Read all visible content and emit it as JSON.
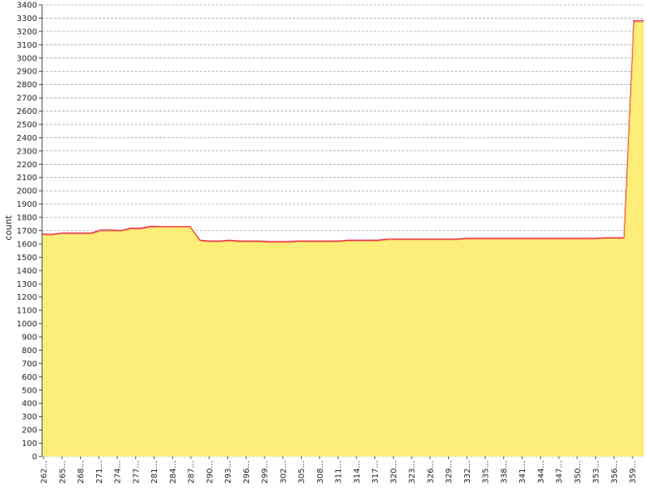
{
  "chart_data": {
    "type": "area",
    "ylabel": "count",
    "xlabel": "",
    "ylim": [
      0,
      3400
    ],
    "y_ticks": [
      0,
      100,
      200,
      300,
      400,
      500,
      600,
      700,
      800,
      900,
      1000,
      1100,
      1200,
      1300,
      1400,
      1500,
      1600,
      1700,
      1800,
      1900,
      2000,
      2100,
      2200,
      2300,
      2400,
      2500,
      2600,
      2700,
      2800,
      2900,
      3000,
      3100,
      3200,
      3300,
      3400
    ],
    "x_tick_labels": [
      "262...",
      "265...",
      "268...",
      "271...",
      "274...",
      "277...",
      "281...",
      "284...",
      "287...",
      "290...",
      "293...",
      "296...",
      "299...",
      "302...",
      "305...",
      "308...",
      "311...",
      "314...",
      "317...",
      "320...",
      "323...",
      "326...",
      "329...",
      "332...",
      "335...",
      "338...",
      "341...",
      "344...",
      "347...",
      "350...",
      "353...",
      "356...",
      "359..."
    ],
    "grid": true,
    "fill_color": "#fdee7a",
    "upper_line_color": "#e8304a",
    "series": [
      {
        "values_low": [
          1670,
          1665,
          1675,
          1675,
          1675,
          1675,
          1695,
          1695,
          1695,
          1710,
          1710,
          1725,
          1725,
          1725,
          1725,
          1725,
          1620,
          1615,
          1615,
          1620,
          1615,
          1615,
          1615,
          1610,
          1610,
          1610,
          1615,
          1615,
          1615,
          1615,
          1615,
          1620,
          1620,
          1620,
          1620,
          1630,
          1630,
          1630,
          1630,
          1630,
          1630,
          1630,
          1630,
          1635,
          1635,
          1635,
          1635,
          1635,
          1635,
          1635,
          1635,
          1635,
          1635,
          1635,
          1635,
          1635,
          1635,
          1640,
          1640,
          1640,
          3270,
          3270
        ],
        "values_high": [
          1675,
          1672,
          1682,
          1682,
          1682,
          1682,
          1705,
          1705,
          1700,
          1718,
          1718,
          1732,
          1730,
          1730,
          1730,
          1730,
          1628,
          1622,
          1622,
          1628,
          1622,
          1622,
          1622,
          1618,
          1618,
          1618,
          1622,
          1622,
          1622,
          1622,
          1622,
          1628,
          1628,
          1628,
          1628,
          1636,
          1636,
          1636,
          1636,
          1636,
          1636,
          1636,
          1636,
          1642,
          1642,
          1642,
          1642,
          1642,
          1642,
          1642,
          1642,
          1642,
          1642,
          1642,
          1642,
          1642,
          1642,
          1646,
          1646,
          1646,
          3280,
          3280
        ]
      }
    ]
  }
}
